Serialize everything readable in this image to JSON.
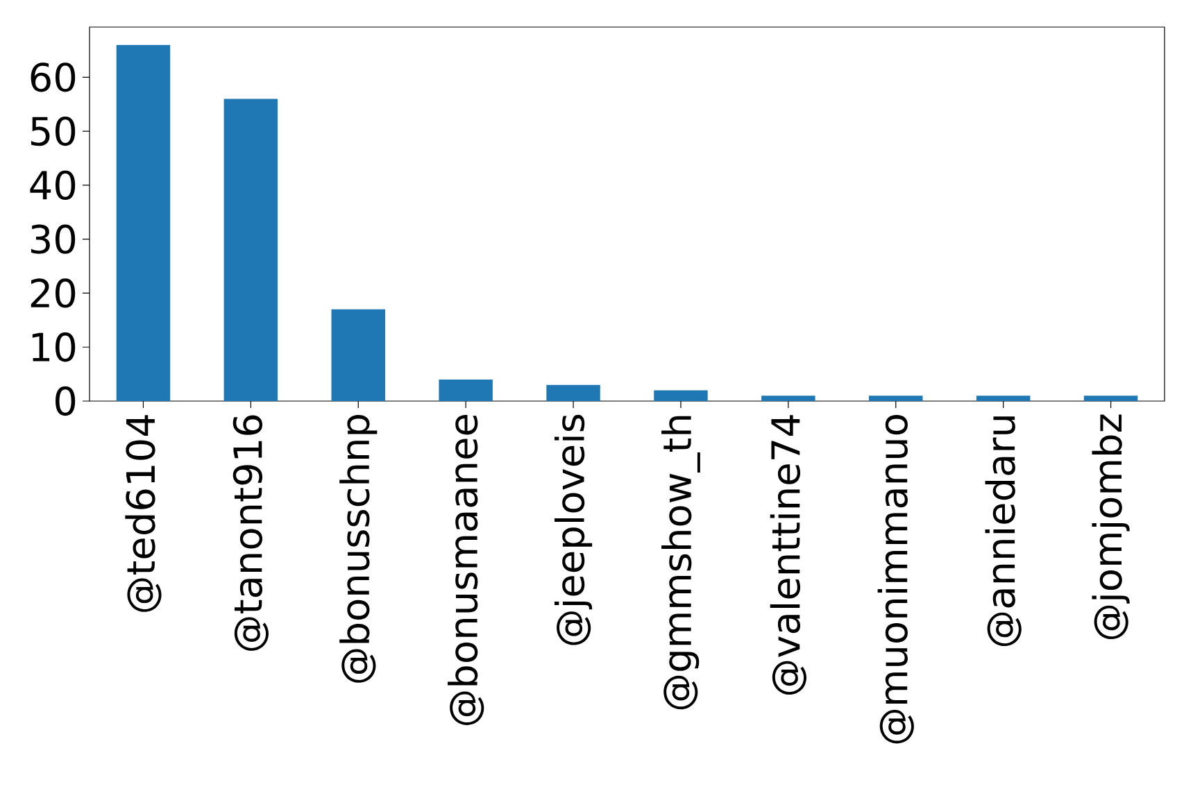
{
  "chart_data": {
    "type": "bar",
    "categories": [
      "@ted6104",
      "@tanont916",
      "@bonusschnp",
      "@bonusmaanee",
      "@jeeploveis",
      "@gmmshow_th",
      "@valenttine74",
      "@muonimmanuo",
      "@anniedaru",
      "@jomjombz"
    ],
    "values": [
      66,
      56,
      17,
      4,
      3,
      2,
      1,
      1,
      1,
      1
    ],
    "color": "#1f77b4",
    "ylim": [
      0,
      69.3
    ],
    "yticks": [
      0,
      10,
      20,
      30,
      40,
      50,
      60
    ]
  }
}
